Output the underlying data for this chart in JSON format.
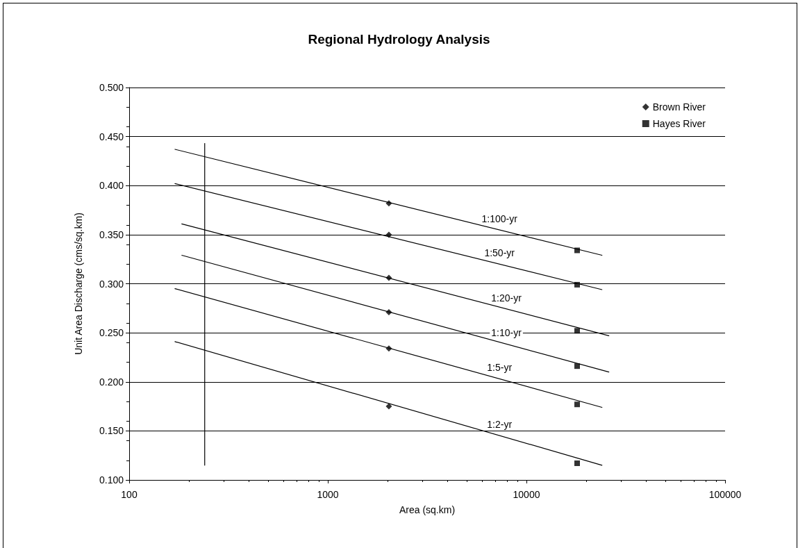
{
  "chart_data": {
    "type": "scatter",
    "title": "Regional Hydrology Analysis",
    "xlabel": "Area (sq.km)",
    "ylabel": "Unit Area Discharge (cms/sq.km)",
    "log": "x",
    "xlim": [
      100,
      100000
    ],
    "xticks": [
      100,
      1000,
      10000,
      100000
    ],
    "ylim": [
      0.1,
      0.5
    ],
    "yticks": [
      {
        "value": 0.1,
        "label": "0.100"
      },
      {
        "value": 0.15,
        "label": "0.150"
      },
      {
        "value": 0.2,
        "label": "0.200"
      },
      {
        "value": 0.25,
        "label": "0.250"
      },
      {
        "value": 0.3,
        "label": "0.300"
      },
      {
        "value": 0.35,
        "label": "0.350"
      },
      {
        "value": 0.4,
        "label": "0.400"
      },
      {
        "value": 0.45,
        "label": "0.450"
      },
      {
        "value": 0.5,
        "label": "0.500"
      }
    ],
    "grid": "y",
    "legend": "top right",
    "series": [
      {
        "name": "Brown River",
        "marker": "diamond",
        "color": "#000000",
        "x": [
          2030,
          2030,
          2030,
          2030,
          2030,
          2030
        ],
        "values": [
          0.382,
          0.35,
          0.306,
          0.271,
          0.234,
          0.175
        ]
      },
      {
        "name": "Hayes River",
        "marker": "square",
        "color": "#000000",
        "x": [
          18000,
          18000,
          18000,
          18000,
          18000,
          18000
        ],
        "values": [
          0.334,
          0.299,
          0.252,
          0.216,
          0.177,
          0.117
        ]
      },
      {
        "name": "1:100-yr",
        "type": "line",
        "marker": "none",
        "color": "#000000",
        "x": [
          170,
          24000
        ],
        "values": [
          0.437,
          0.329
        ]
      },
      {
        "name": "1:50-yr",
        "type": "line",
        "marker": "none",
        "color": "#000000",
        "x": [
          170,
          24000
        ],
        "values": [
          0.402,
          0.294
        ]
      },
      {
        "name": "1:20-yr",
        "type": "line",
        "marker": "none",
        "color": "#000000",
        "x": [
          184,
          26000
        ],
        "values": [
          0.361,
          0.247
        ]
      },
      {
        "name": "1:10-yr",
        "type": "line",
        "marker": "none",
        "color": "#000000",
        "x": [
          184,
          26000
        ],
        "values": [
          0.329,
          0.21
        ]
      },
      {
        "name": "1:5-yr",
        "type": "line",
        "marker": "none",
        "color": "#000000",
        "x": [
          170,
          24000
        ],
        "values": [
          0.295,
          0.174
        ]
      },
      {
        "name": "1:2-yr",
        "type": "line",
        "marker": "none",
        "color": "#000000",
        "x": [
          170,
          24000
        ],
        "values": [
          0.241,
          0.115
        ]
      },
      {
        "type": "line",
        "marker": "none",
        "color": "#000000",
        "x": [
          240,
          240
        ],
        "values": [
          0.443,
          0.115
        ]
      }
    ]
  }
}
